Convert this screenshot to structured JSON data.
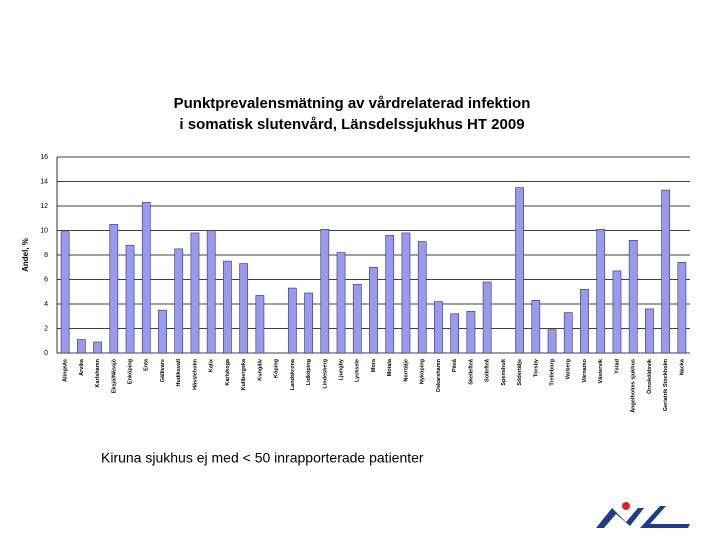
{
  "chart_data": {
    "type": "bar",
    "title": [
      "Punktprevalensmätning av vårdrelaterad infektion",
      "i somatisk slutenvård, Länsdelssjukhus HT 2009"
    ],
    "y_label": "Andel, %",
    "annotations": [
      "Kiruna sjukhus ej med  < 50 inrapporterade patienter"
    ],
    "categories": [
      "Alingsås",
      "Arvika",
      "Karlshamn",
      "Eksjö/Nässjö",
      "Enköping",
      "Enta",
      "Gällivare",
      "Hudiksvall",
      "Hässleholm",
      "Kalix",
      "Karlskoga",
      "Kullbergska",
      "Kungälv",
      "Köping",
      "Landskrona",
      "Lidköping",
      "Lindesberg",
      "Ljungby",
      "Lycksele",
      "Mora",
      "Motala",
      "Norrtälje",
      "Nyköping",
      "Oskarshamn",
      "Piteå",
      "Skellefteå",
      "Sollefteå",
      "Spenshult",
      "Södertälje",
      "Torsby",
      "Trelleborg",
      "Varberg",
      "Värnamo",
      "Västervik",
      "Ystad",
      "Ängelholms sjukhus",
      "Örnsköldsvik",
      "Geriatrik Stockholm",
      "Nacka"
    ],
    "values": [
      9.9,
      1.1,
      0.9,
      10.5,
      8.8,
      12.3,
      3.5,
      8.5,
      9.8,
      10.0,
      7.5,
      7.3,
      4.7,
      null,
      5.3,
      4.9,
      10.1,
      8.2,
      5.6,
      7.0,
      9.6,
      9.8,
      9.1,
      4.2,
      3.2,
      3.4,
      5.8,
      null,
      13.5,
      4.3,
      1.9,
      3.3,
      5.2,
      10.1,
      6.7,
      9.2,
      3.6,
      13.3,
      7.4
    ],
    "color": "#9999ee",
    "ylim": [
      0,
      16
    ],
    "yticks": [
      0,
      2,
      4,
      6,
      8,
      10,
      12,
      14,
      16
    ],
    "grid": true
  }
}
